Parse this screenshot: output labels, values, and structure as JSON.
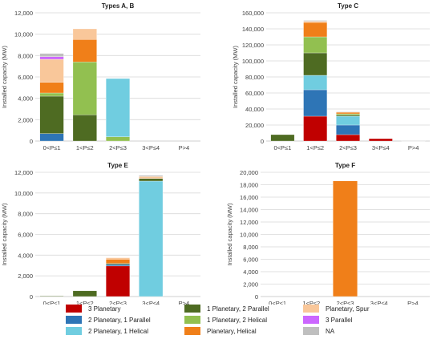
{
  "colors": {
    "3 Planetary": "#c00000",
    "2 Planetary, 1 Parallel": "#2e75b6",
    "2 Planetary, 1 Helical": "#70cde0",
    "1 Planetary, 2 Parallel": "#4e6b22",
    "1 Planetary, 2 Helical": "#92c050",
    "Planetary, Helical": "#f07f19",
    "Planetary, Spur": "#f9c79a",
    "3 Parallel": "#cc66ff",
    "NA": "#bfbfbf"
  },
  "legend": {
    "items": [
      "3 Planetary",
      "2 Planetary, 1 Parallel",
      "2 Planetary, 1 Helical",
      "1 Planetary, 2 Parallel",
      "1 Planetary, 2 Helical",
      "Planetary, Helical",
      "Planetary, Spur",
      "3 Parallel",
      "NA"
    ]
  },
  "chart_data": [
    {
      "type": "bar",
      "stacked": true,
      "title": "Types A, B",
      "ylabel": "Installed capacity (MW)",
      "ylim": [
        0,
        12000
      ],
      "yticks": [
        "0",
        "2,000",
        "4,000",
        "6,000",
        "8,000",
        "10,000",
        "12,000"
      ],
      "categories": [
        "0<P≤1",
        "1<P≤2",
        "2<P≤3",
        "3<P≤4",
        "P>4"
      ],
      "series": [
        {
          "name": "2 Planetary, 1 Parallel",
          "values": [
            700,
            0,
            0,
            0,
            0
          ]
        },
        {
          "name": "1 Planetary, 2 Parallel",
          "values": [
            3500,
            2450,
            0,
            0,
            0
          ]
        },
        {
          "name": "1 Planetary, 2 Helical",
          "values": [
            300,
            4950,
            400,
            0,
            0
          ]
        },
        {
          "name": "2 Planetary, 1 Helical",
          "values": [
            0,
            0,
            5450,
            0,
            0
          ]
        },
        {
          "name": "Planetary, Helical",
          "values": [
            1000,
            2100,
            0,
            0,
            0
          ]
        },
        {
          "name": "Planetary, Spur",
          "values": [
            2150,
            1000,
            0,
            0,
            0
          ]
        },
        {
          "name": "3 Parallel",
          "values": [
            250,
            0,
            0,
            0,
            0
          ]
        },
        {
          "name": "NA",
          "values": [
            300,
            0,
            0,
            0,
            0
          ]
        }
      ]
    },
    {
      "type": "bar",
      "stacked": true,
      "title": "Type C",
      "ylabel": "Installed capacity (MW)",
      "ylim": [
        0,
        160000
      ],
      "yticks": [
        "0",
        "20,000",
        "40,000",
        "60,000",
        "80,000",
        "100,000",
        "120,000",
        "140,000",
        "160,000"
      ],
      "categories": [
        "0<P≤1",
        "1<P≤2",
        "2<P≤3",
        "3<P≤4",
        "P>4"
      ],
      "series": [
        {
          "name": "3 Planetary",
          "values": [
            0,
            31000,
            8000,
            3000,
            0
          ]
        },
        {
          "name": "2 Planetary, 1 Parallel",
          "values": [
            0,
            33000,
            12000,
            0,
            0
          ]
        },
        {
          "name": "2 Planetary, 1 Helical",
          "values": [
            0,
            18000,
            11000,
            0,
            0
          ]
        },
        {
          "name": "1 Planetary, 2 Parallel",
          "values": [
            8000,
            28000,
            1500,
            0,
            0
          ]
        },
        {
          "name": "1 Planetary, 2 Helical",
          "values": [
            0,
            20000,
            1500,
            0,
            0
          ]
        },
        {
          "name": "Planetary, Helical",
          "values": [
            0,
            18000,
            2000,
            0,
            0
          ]
        },
        {
          "name": "Planetary, Spur",
          "values": [
            0,
            1500,
            0,
            0,
            0
          ]
        },
        {
          "name": "NA",
          "values": [
            0,
            1000,
            500,
            0,
            500
          ]
        }
      ]
    },
    {
      "type": "bar",
      "stacked": true,
      "title": "Type E",
      "ylabel": "Installed capacity (MW)",
      "ylim": [
        0,
        12000
      ],
      "yticks": [
        "0",
        "2,000",
        "4,000",
        "6,000",
        "8,000",
        "10,000",
        "12,000"
      ],
      "categories": [
        "0<P≤1",
        "1<P≤2",
        "2<P≤3",
        "3<P≤4",
        "P>4"
      ],
      "series": [
        {
          "name": "3 Planetary",
          "values": [
            0,
            0,
            2950,
            0,
            0
          ]
        },
        {
          "name": "2 Planetary, 1 Parallel",
          "values": [
            0,
            0,
            150,
            0,
            0
          ]
        },
        {
          "name": "2 Planetary, 1 Helical",
          "values": [
            0,
            0,
            0,
            11150,
            0
          ]
        },
        {
          "name": "1 Planetary, 2 Parallel",
          "values": [
            50,
            550,
            100,
            250,
            0
          ]
        },
        {
          "name": "Planetary, Helical",
          "values": [
            0,
            0,
            400,
            0,
            0
          ]
        },
        {
          "name": "Planetary, Spur",
          "values": [
            0,
            0,
            150,
            200,
            0
          ]
        },
        {
          "name": "NA",
          "values": [
            0,
            0,
            0,
            100,
            0
          ]
        }
      ]
    },
    {
      "type": "bar",
      "stacked": true,
      "title": "Type F",
      "ylabel": "Installed capacity (MW)",
      "ylim": [
        0,
        20000
      ],
      "yticks": [
        "0",
        "2,000",
        "4,000",
        "6,000",
        "8,000",
        "10,000",
        "12,000",
        "14,000",
        "16,000",
        "18,000",
        "20,000"
      ],
      "categories": [
        "0<P≤1",
        "1<P≤2",
        "2<P≤3",
        "3<P≤4",
        "P>4"
      ],
      "series": [
        {
          "name": "Planetary, Helical",
          "values": [
            0,
            0,
            18600,
            0,
            0
          ]
        }
      ]
    }
  ]
}
